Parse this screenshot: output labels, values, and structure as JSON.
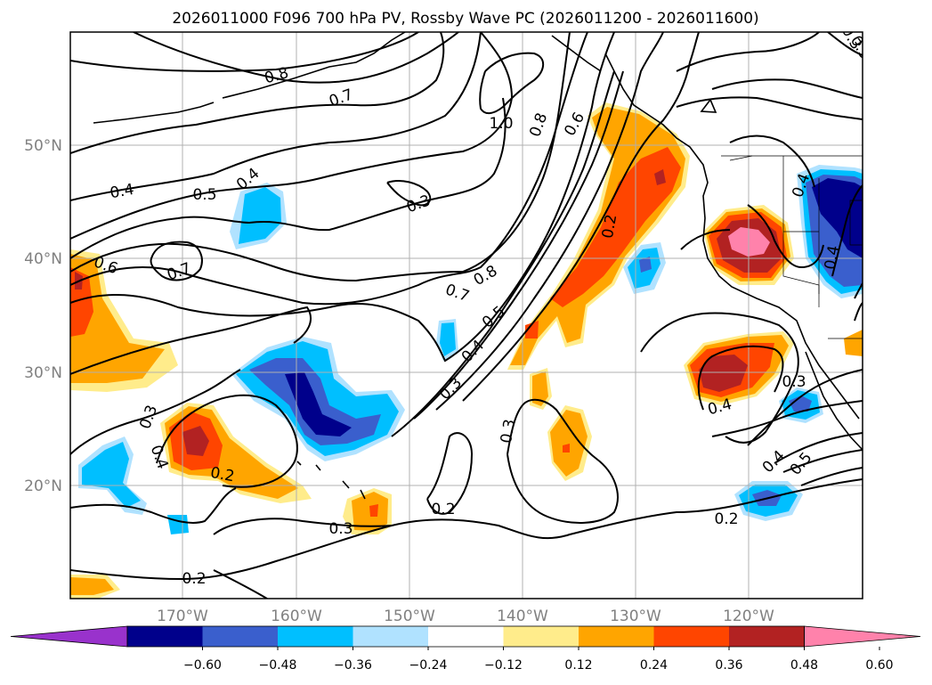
{
  "title": "2026011000 F096 700 hPa PV, Rossby Wave PC (2026011200 - 2026011600)",
  "lat_labels": [
    "50°N",
    "40°N",
    "30°N",
    "20°N"
  ],
  "lon_labels": [
    "170°W",
    "160°W",
    "150°W",
    "140°W",
    "130°W",
    "120°W"
  ],
  "colorbar": {
    "ticks": [
      "−0.60",
      "−0.48",
      "−0.36",
      "−0.24",
      "−0.12",
      "0.12",
      "0.24",
      "0.36",
      "0.48",
      "0.60"
    ],
    "colors": [
      "#9932cc",
      "#00008b",
      "#3a5fcd",
      "#00bfff",
      "#b0e2ff",
      "#ffffff",
      "#ffec8b",
      "#ffa500",
      "#ff4500",
      "#b22222",
      "#ff82ab"
    ]
  },
  "contour_labels": [
    "0.8",
    "0.7",
    "1.0",
    "0.8",
    "0.6",
    "0.4",
    "0.5",
    "0.4",
    "0.3",
    "0.6",
    "0.7",
    "0.7",
    "0.8",
    "0.5",
    "0.4",
    "0.3",
    "0.2",
    "0.4",
    "0.4",
    "0.3",
    "0.4",
    "0.2",
    "0.3",
    "0.3",
    "0.2",
    "0.3",
    "0.2",
    "0.4",
    "0.5",
    "0.2",
    "0.4",
    "0.3",
    "0.5"
  ]
}
